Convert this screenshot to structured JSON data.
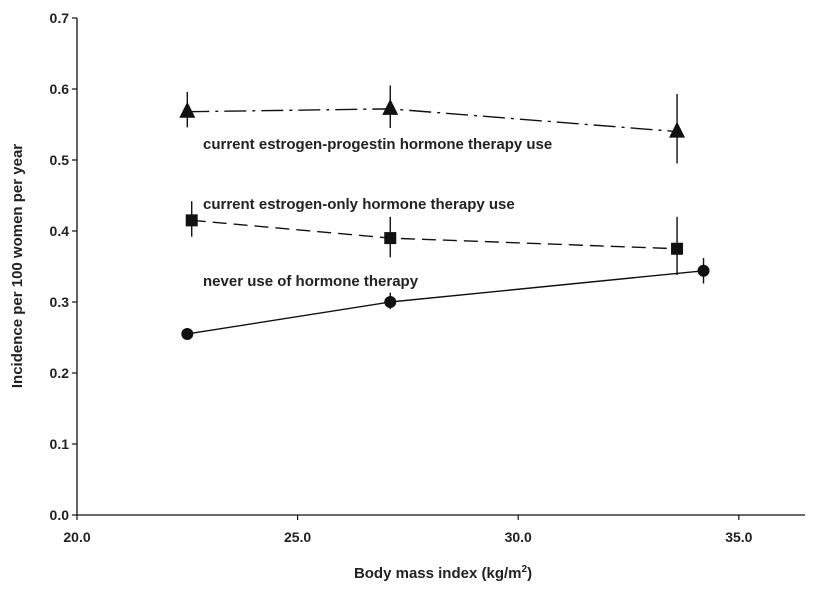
{
  "chart_data": {
    "type": "line",
    "title": "",
    "xlabel": "Body mass index (kg/m",
    "xlabel_sup": "2",
    "xlabel_close": ")",
    "ylabel": "Incidence per 100 women per year",
    "xlim": [
      20.0,
      36.5
    ],
    "ylim": [
      0.0,
      0.7
    ],
    "x_ticks": [
      20.0,
      25.0,
      30.0,
      35.0
    ],
    "x_tick_labels": [
      "20.0",
      "25.0",
      "30.0",
      "35.0"
    ],
    "y_ticks": [
      0.0,
      0.1,
      0.2,
      0.3,
      0.4,
      0.5,
      0.6,
      0.7
    ],
    "y_tick_labels": [
      "0.0",
      "0.1",
      "0.2",
      "0.3",
      "0.4",
      "0.5",
      "0.6",
      "0.7"
    ],
    "grid": false,
    "series": [
      {
        "name": "current estrogen-progestin hormone therapy use",
        "marker": "triangle",
        "line_style": "dash-dot",
        "x": [
          22.5,
          27.1,
          33.6
        ],
        "y": [
          0.568,
          0.572,
          0.54
        ],
        "err_low": [
          0.546,
          0.545,
          0.495
        ],
        "err_high": [
          0.596,
          0.605,
          0.593
        ]
      },
      {
        "name": "current estrogen-only hormone therapy use",
        "marker": "square",
        "line_style": "dashed",
        "x": [
          22.6,
          27.1,
          33.6
        ],
        "y": [
          0.415,
          0.39,
          0.375
        ],
        "err_low": [
          0.392,
          0.363,
          0.338
        ],
        "err_high": [
          0.442,
          0.42,
          0.42
        ]
      },
      {
        "name": "never use of hormone therapy",
        "marker": "circle",
        "line_style": "solid",
        "x": [
          22.5,
          27.1,
          34.2
        ],
        "y": [
          0.255,
          0.3,
          0.344
        ],
        "err_low": [
          0.248,
          0.29,
          0.326
        ],
        "err_high": [
          0.263,
          0.313,
          0.362
        ]
      }
    ]
  }
}
